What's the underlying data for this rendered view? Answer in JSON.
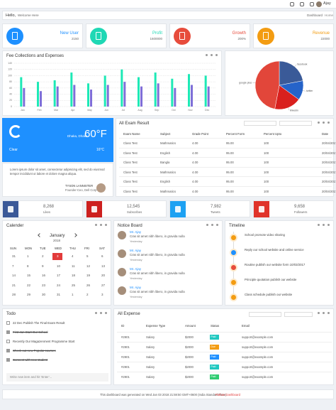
{
  "topbar": {
    "user": "Ajay"
  },
  "header": {
    "greeting": "Hello,",
    "welcome": "Welcome Here",
    "breadcrumb": [
      "Dashboard",
      "Home"
    ]
  },
  "stats": [
    {
      "label": "New User",
      "value": 2150,
      "color": "#1e90ff"
    },
    {
      "label": "Profit",
      "value": 1600000,
      "color": "#1fd8b5"
    },
    {
      "label": "Growth",
      "value": "200%",
      "color": "#e74c3c"
    },
    {
      "label": "Revenue",
      "value": 22000,
      "color": "#f39c12"
    }
  ],
  "chart_data": [
    {
      "type": "bar",
      "title": "Fee Collections and Expenses",
      "categories": [
        "Jan",
        "Feb",
        "Mar",
        "Apr",
        "May",
        "Jun",
        "Jul",
        "Aug",
        "Sep",
        "Oct",
        "Nov",
        "Dec"
      ],
      "series": [
        {
          "color": "#1de9b6",
          "values": [
            95,
            80,
            85,
            110,
            75,
            100,
            120,
            95,
            110,
            90,
            105,
            100
          ]
        },
        {
          "color": "#7e6fd8",
          "values": [
            60,
            50,
            65,
            70,
            55,
            70,
            80,
            65,
            75,
            60,
            70,
            65
          ]
        }
      ],
      "ylim": [
        0,
        140
      ],
      "yticks": [
        0,
        20,
        40,
        60,
        80,
        100,
        120,
        140
      ],
      "grid": true
    },
    {
      "type": "pie",
      "categories": [
        "facebook",
        "twitter",
        "linkedin",
        "google plus"
      ],
      "values": [
        22,
        13,
        18,
        47
      ],
      "colors": [
        "#3a5a98",
        "#2563c9",
        "#d9201e",
        "#e2463a"
      ]
    }
  ],
  "weather": {
    "temp_f": "60°F",
    "location": "Dhaka, Dhaka",
    "condition": "Clear",
    "temp_c": "16°C",
    "color": "#1e90ff"
  },
  "quote": {
    "text": "Lorem ipsum dolor sit amet, consectetur adipisicing elit, sed do eiusmod tempor incididunt ut labore et dolore magna aliqua.",
    "author": "TYSON LANNISTER",
    "role": "Founder-Ceo, Dell Corp"
  },
  "exam": {
    "title": "All Exam Result",
    "headers": [
      "Exam Name",
      "Subject",
      "Grade Point",
      "Percent Form",
      "Percent Upto",
      "Date"
    ],
    "rows": [
      [
        "Class Test",
        "Mathmatics",
        "4.00",
        "95.00",
        "100",
        "20/04/2017"
      ],
      [
        "Class Test",
        "English",
        "4.00",
        "95.00",
        "100",
        "20/04/2017"
      ],
      [
        "Class Test",
        "Bangla",
        "4.00",
        "95.00",
        "100",
        "20/04/2017"
      ],
      [
        "Class Test",
        "Mathmatics",
        "4.00",
        "95.00",
        "100",
        "20/04/2017"
      ],
      [
        "Class Test",
        "English",
        "4.00",
        "95.00",
        "100",
        "20/04/2017"
      ],
      [
        "Class Test",
        "Mathmatics",
        "4.00",
        "95.00",
        "100",
        "20/04/2017"
      ]
    ]
  },
  "social": [
    {
      "value": "8,268",
      "label": "Likes",
      "color": "#3b5998"
    },
    {
      "value": "12,545",
      "label": "Subscribes",
      "color": "#cd201f"
    },
    {
      "value": "7,982",
      "label": "Tweets",
      "color": "#1da1f2"
    },
    {
      "value": "9,658",
      "label": "Followers",
      "color": "#e0332a"
    }
  ],
  "calendar": {
    "title": "Calender",
    "month": "January",
    "year": "2018",
    "weekdays": [
      "SUN",
      "MON",
      "TUE",
      "WED",
      "THU",
      "FRI",
      "SAT"
    ],
    "highlight": 3,
    "weeks": [
      [
        31,
        1,
        2,
        3,
        4,
        5,
        6
      ],
      [
        7,
        8,
        9,
        10,
        11,
        12,
        13
      ],
      [
        14,
        15,
        16,
        17,
        18,
        19,
        20
      ],
      [
        21,
        22,
        23,
        24,
        25,
        26,
        27
      ],
      [
        28,
        29,
        30,
        31,
        1,
        2,
        3
      ]
    ]
  },
  "notice": {
    "title": "Notice Board",
    "items": [
      {
        "name": "Mr. Ajay",
        "text": "Cras sit amet nibh libero, in gravida nulla",
        "time": "Yesterday"
      },
      {
        "name": "Mr. Ajay",
        "text": "Cras sit amet nibh libero, in gravida nulla",
        "time": "Yesterday"
      },
      {
        "name": "Mr. Ajay",
        "text": "Cras sit amet nibh libero, in gravida nulla",
        "time": "Yesterday"
      },
      {
        "name": "Mr. Ajay",
        "text": "Cras sit amet nibh libero, in gravida nulla",
        "time": "Yesterday"
      }
    ]
  },
  "timeline": {
    "title": "Timeline",
    "items": [
      {
        "text": "School promote video sharing",
        "color": "#f39c12"
      },
      {
        "text": "Reply our school website and online service",
        "color": "#1e90ff"
      },
      {
        "text": "Routine publish our website form 10/03/2017",
        "color": "#e74c3c"
      },
      {
        "text": "Principle quotation publish our website",
        "color": "#f39c12"
      },
      {
        "text": "Class schedule publish our website",
        "color": "#f39c12"
      }
    ]
  },
  "todo": {
    "title": "Todo",
    "items": [
      {
        "text": "22 Dec Publish The Final Exam Result",
        "done": false
      },
      {
        "text": "First Jan Start Our School",
        "done": true
      },
      {
        "text": "Recently Our Magazenment Programme Start",
        "done": false
      },
      {
        "text": "Check out new Popular courses",
        "done": true
      },
      {
        "text": "Connect with new student",
        "done": true
      }
    ],
    "placeholder": "Write new item and hit 'Enter'..."
  },
  "expense": {
    "title": "All Expense",
    "headers": [
      "ID",
      "Expense Type",
      "Amount",
      "Status",
      "Email"
    ],
    "rows": [
      {
        "id": "#2901",
        "type": "Salary",
        "amount": "$2000",
        "status": "Paid",
        "status_color": "#1fc8c0",
        "email": "support@example.com"
      },
      {
        "id": "#2901",
        "type": "Salary",
        "amount": "$2000",
        "status": "Due",
        "status_color": "#f39c12",
        "email": "support@example.com"
      },
      {
        "id": "#2901",
        "type": "Salary",
        "amount": "$2000",
        "status": "Paid",
        "status_color": "#1e90ff",
        "email": "support@example.com"
      },
      {
        "id": "#2901",
        "type": "Salary",
        "amount": "$2000",
        "status": "Paid",
        "status_color": "#1fc8c0",
        "email": "support@example.com"
      },
      {
        "id": "#2901",
        "type": "Salary",
        "amount": "$2000",
        "status": "Paid",
        "status_color": "#2ecc71",
        "email": "support@example.com"
      }
    ]
  },
  "footer": {
    "text": "This dashboard was generated on Wed Jan 03 2018 21:59:50 GMT+0600 (India Standard Time)",
    "brand": "Pathan Dashboard"
  }
}
